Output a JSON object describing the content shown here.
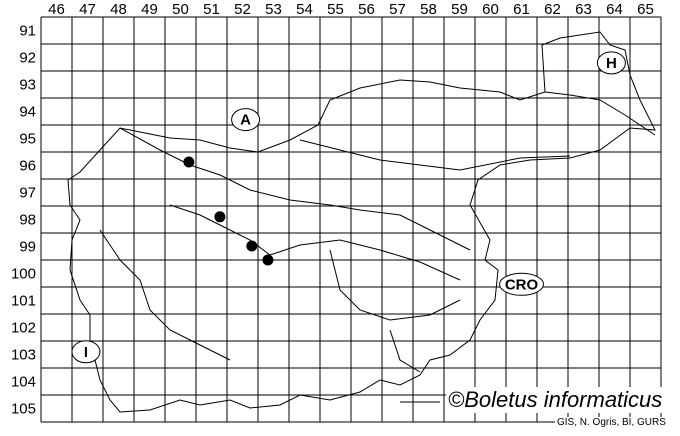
{
  "map": {
    "columns": [
      "46",
      "47",
      "48",
      "49",
      "50",
      "51",
      "52",
      "53",
      "54",
      "55",
      "56",
      "57",
      "58",
      "59",
      "60",
      "61",
      "62",
      "63",
      "64",
      "65"
    ],
    "rows": [
      "91",
      "92",
      "93",
      "94",
      "95",
      "96",
      "97",
      "98",
      "99",
      "100",
      "101",
      "102",
      "103",
      "104",
      "105"
    ],
    "country_labels": [
      {
        "text": "A",
        "col": 52.6,
        "row": 94.8
      },
      {
        "text": "H",
        "col": 64.4,
        "row": 92.7
      },
      {
        "text": "CRO",
        "col": 61.5,
        "row": 100.9
      },
      {
        "text": "I",
        "col": 47.45,
        "row": 103.4
      }
    ],
    "records": [
      {
        "col": 50.77,
        "row": 96.37
      },
      {
        "col": 51.77,
        "row": 98.4
      },
      {
        "col": 52.8,
        "row": 99.48
      },
      {
        "col": 53.32,
        "row": 100.0
      }
    ],
    "colors": {
      "lines": "#000000",
      "records": "#000000",
      "background": "#ffffff"
    }
  },
  "credit": "©Boletus informaticus",
  "source": "GIS, N. Ogris, BI, GURS"
}
